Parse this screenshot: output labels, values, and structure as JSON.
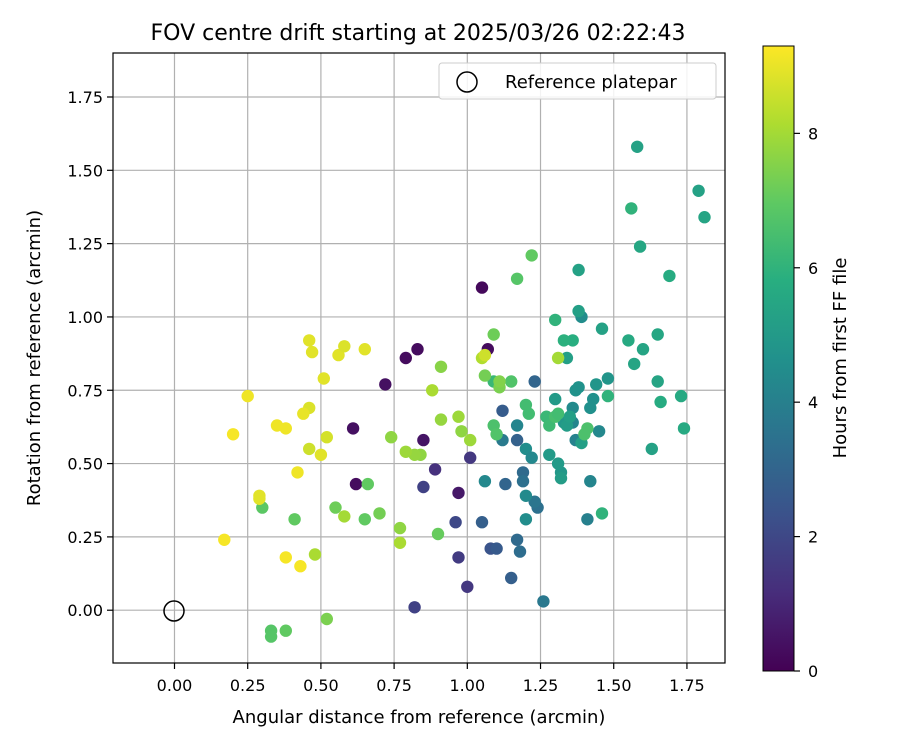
{
  "chart_data": {
    "type": "scatter",
    "title": "FOV centre drift starting at 2025/03/26 02:22:43",
    "xlabel": "Angular distance from reference (arcmin)",
    "ylabel": "Rotation from reference (arcmin)",
    "xlim": [
      -0.21,
      1.88
    ],
    "ylim": [
      -0.18,
      1.9
    ],
    "xticks": [
      "0.00",
      "0.25",
      "0.50",
      "0.75",
      "1.00",
      "1.25",
      "1.50",
      "1.75"
    ],
    "yticks": [
      "0.00",
      "0.25",
      "0.50",
      "0.75",
      "1.00",
      "1.25",
      "1.50",
      "1.75"
    ],
    "grid": true,
    "legend": {
      "position": "top-right",
      "entries": [
        "Reference platepar"
      ]
    },
    "reference_point": {
      "x": 0.0,
      "y": 0.0,
      "label": "Reference platepar"
    },
    "colorbar": {
      "label": "Hours from first FF file",
      "min": 0,
      "max": 9.3,
      "ticks": [
        "0",
        "2",
        "4",
        "6",
        "8"
      ],
      "colormap": "viridis"
    },
    "points": [
      [
        1.05,
        1.1,
        0.2
      ],
      [
        1.07,
        0.89,
        0.3
      ],
      [
        0.83,
        0.89,
        0.3
      ],
      [
        0.79,
        0.86,
        0.3
      ],
      [
        0.72,
        0.77,
        0.4
      ],
      [
        0.61,
        0.62,
        0.4
      ],
      [
        0.62,
        0.43,
        0.3
      ],
      [
        0.85,
        0.58,
        0.5
      ],
      [
        0.97,
        0.4,
        0.6
      ],
      [
        0.89,
        0.48,
        1.3
      ],
      [
        1.01,
        0.52,
        1.5
      ],
      [
        0.85,
        0.42,
        1.8
      ],
      [
        0.96,
        0.3,
        2.0
      ],
      [
        0.97,
        0.18,
        1.6
      ],
      [
        1.0,
        0.08,
        1.5
      ],
      [
        0.82,
        0.01,
        1.8
      ],
      [
        1.08,
        0.21,
        2.4
      ],
      [
        1.1,
        0.21,
        2.6
      ],
      [
        1.15,
        0.11,
        2.8
      ],
      [
        1.05,
        0.3,
        2.8
      ],
      [
        1.12,
        0.68,
        2.7
      ],
      [
        1.13,
        0.43,
        3.0
      ],
      [
        1.17,
        0.58,
        2.9
      ],
      [
        1.17,
        0.24,
        3.2
      ],
      [
        1.18,
        0.2,
        3.3
      ],
      [
        1.23,
        0.78,
        3.0
      ],
      [
        1.19,
        0.47,
        3.2
      ],
      [
        1.19,
        0.44,
        3.4
      ],
      [
        1.24,
        0.35,
        3.4
      ],
      [
        1.23,
        0.37,
        3.6
      ],
      [
        1.26,
        0.03,
        3.7
      ],
      [
        1.12,
        0.58,
        3.8
      ],
      [
        1.17,
        0.63,
        4.2
      ],
      [
        1.06,
        0.44,
        4.3
      ],
      [
        1.2,
        0.55,
        4.5
      ],
      [
        1.22,
        0.52,
        4.3
      ],
      [
        1.2,
        0.39,
        4.4
      ],
      [
        1.2,
        0.31,
        4.5
      ],
      [
        1.41,
        0.31,
        4.0
      ],
      [
        1.42,
        0.44,
        4.2
      ],
      [
        1.45,
        0.61,
        4.3
      ],
      [
        1.37,
        0.58,
        4.1
      ],
      [
        1.36,
        0.64,
        4.2
      ],
      [
        1.36,
        0.69,
        4.4
      ],
      [
        1.39,
        1.0,
        4.5
      ],
      [
        1.42,
        0.69,
        4.6
      ],
      [
        1.43,
        0.72,
        4.6
      ],
      [
        1.37,
        0.75,
        4.7
      ],
      [
        1.38,
        0.76,
        4.7
      ],
      [
        1.44,
        0.77,
        4.8
      ],
      [
        1.48,
        0.79,
        4.8
      ],
      [
        1.33,
        0.64,
        4.9
      ],
      [
        1.32,
        0.47,
        4.9
      ],
      [
        1.31,
        0.5,
        5.0
      ],
      [
        1.28,
        0.53,
        5.0
      ],
      [
        1.32,
        0.45,
        5.1
      ],
      [
        1.3,
        0.72,
        5.0
      ],
      [
        1.34,
        0.63,
        5.1
      ],
      [
        1.34,
        0.86,
        5.2
      ],
      [
        1.35,
        0.66,
        5.2
      ],
      [
        1.39,
        0.57,
        5.2
      ],
      [
        1.38,
        1.02,
        5.2
      ],
      [
        1.38,
        1.16,
        5.3
      ],
      [
        1.46,
        0.96,
        5.3
      ],
      [
        1.55,
        0.92,
        5.6
      ],
      [
        1.57,
        0.84,
        5.4
      ],
      [
        1.6,
        0.89,
        5.4
      ],
      [
        1.63,
        0.55,
        5.3
      ],
      [
        1.65,
        0.78,
        5.4
      ],
      [
        1.65,
        0.94,
        5.5
      ],
      [
        1.66,
        0.71,
        5.7
      ],
      [
        1.69,
        1.14,
        5.7
      ],
      [
        1.73,
        0.73,
        5.6
      ],
      [
        1.74,
        0.62,
        5.6
      ],
      [
        1.79,
        1.43,
        5.3
      ],
      [
        1.81,
        1.34,
        5.4
      ],
      [
        1.58,
        1.58,
        5.3
      ],
      [
        1.59,
        1.24,
        5.5
      ],
      [
        1.56,
        1.37,
        6.0
      ],
      [
        1.48,
        0.73,
        6.0
      ],
      [
        1.46,
        0.33,
        6.0
      ],
      [
        1.36,
        0.92,
        5.8
      ],
      [
        1.33,
        0.92,
        5.9
      ],
      [
        1.3,
        0.99,
        6.0
      ],
      [
        1.27,
        0.66,
        6.2
      ],
      [
        1.28,
        0.63,
        6.3
      ],
      [
        1.3,
        0.66,
        6.5
      ],
      [
        1.31,
        0.67,
        6.4
      ],
      [
        1.41,
        0.62,
        6.6
      ],
      [
        1.4,
        0.6,
        6.6
      ],
      [
        1.21,
        0.67,
        6.4
      ],
      [
        1.2,
        0.7,
        6.4
      ],
      [
        1.15,
        0.78,
        6.7
      ],
      [
        1.09,
        0.78,
        6.2
      ],
      [
        1.09,
        0.63,
        6.6
      ],
      [
        1.1,
        0.6,
        6.7
      ],
      [
        1.17,
        1.13,
        6.8
      ],
      [
        1.22,
        1.21,
        7.0
      ],
      [
        1.09,
        0.94,
        7.2
      ],
      [
        1.11,
        0.76,
        7.4
      ],
      [
        1.11,
        0.78,
        7.5
      ],
      [
        1.06,
        0.8,
        7.3
      ],
      [
        1.05,
        0.86,
        8.2
      ],
      [
        1.06,
        0.87,
        8.6
      ],
      [
        1.01,
        0.58,
        7.9
      ],
      [
        0.98,
        0.61,
        7.7
      ],
      [
        0.97,
        0.66,
        7.9
      ],
      [
        0.91,
        0.65,
        7.8
      ],
      [
        0.91,
        0.83,
        7.6
      ],
      [
        0.88,
        0.75,
        8.1
      ],
      [
        0.9,
        0.26,
        7.1
      ],
      [
        0.84,
        0.53,
        7.7
      ],
      [
        0.82,
        0.53,
        7.8
      ],
      [
        0.79,
        0.54,
        7.9
      ],
      [
        0.77,
        0.28,
        7.7
      ],
      [
        0.77,
        0.23,
        8.1
      ],
      [
        0.74,
        0.59,
        7.7
      ],
      [
        0.7,
        0.33,
        7.3
      ],
      [
        0.65,
        0.31,
        7.0
      ],
      [
        0.66,
        0.43,
        7.0
      ],
      [
        0.55,
        0.35,
        7.2
      ],
      [
        0.58,
        0.32,
        8.0
      ],
      [
        0.48,
        0.19,
        8.1
      ],
      [
        0.52,
        -0.03,
        7.4
      ],
      [
        0.38,
        -0.07,
        7.0
      ],
      [
        0.33,
        -0.07,
        6.8
      ],
      [
        0.33,
        -0.09,
        6.8
      ],
      [
        0.3,
        0.35,
        6.9
      ],
      [
        0.41,
        0.31,
        7.0
      ],
      [
        1.31,
        0.86,
        8.0
      ],
      [
        0.52,
        0.59,
        8.7
      ],
      [
        0.5,
        0.53,
        8.9
      ],
      [
        0.46,
        0.55,
        8.6
      ],
      [
        0.46,
        0.69,
        8.8
      ],
      [
        0.47,
        0.88,
        8.9
      ],
      [
        0.46,
        0.92,
        8.9
      ],
      [
        0.51,
        0.79,
        8.9
      ],
      [
        0.56,
        0.87,
        8.9
      ],
      [
        0.58,
        0.9,
        8.8
      ],
      [
        0.65,
        0.89,
        8.9
      ],
      [
        0.44,
        0.67,
        9.0
      ],
      [
        0.42,
        0.47,
        9.1
      ],
      [
        0.38,
        0.62,
        9.1
      ],
      [
        0.35,
        0.63,
        9.1
      ],
      [
        0.43,
        0.15,
        9.2
      ],
      [
        0.38,
        0.18,
        9.2
      ],
      [
        0.29,
        0.38,
        8.9
      ],
      [
        0.29,
        0.39,
        8.9
      ],
      [
        0.25,
        0.73,
        9.1
      ],
      [
        0.2,
        0.6,
        9.2
      ],
      [
        0.17,
        0.24,
        9.2
      ]
    ]
  }
}
